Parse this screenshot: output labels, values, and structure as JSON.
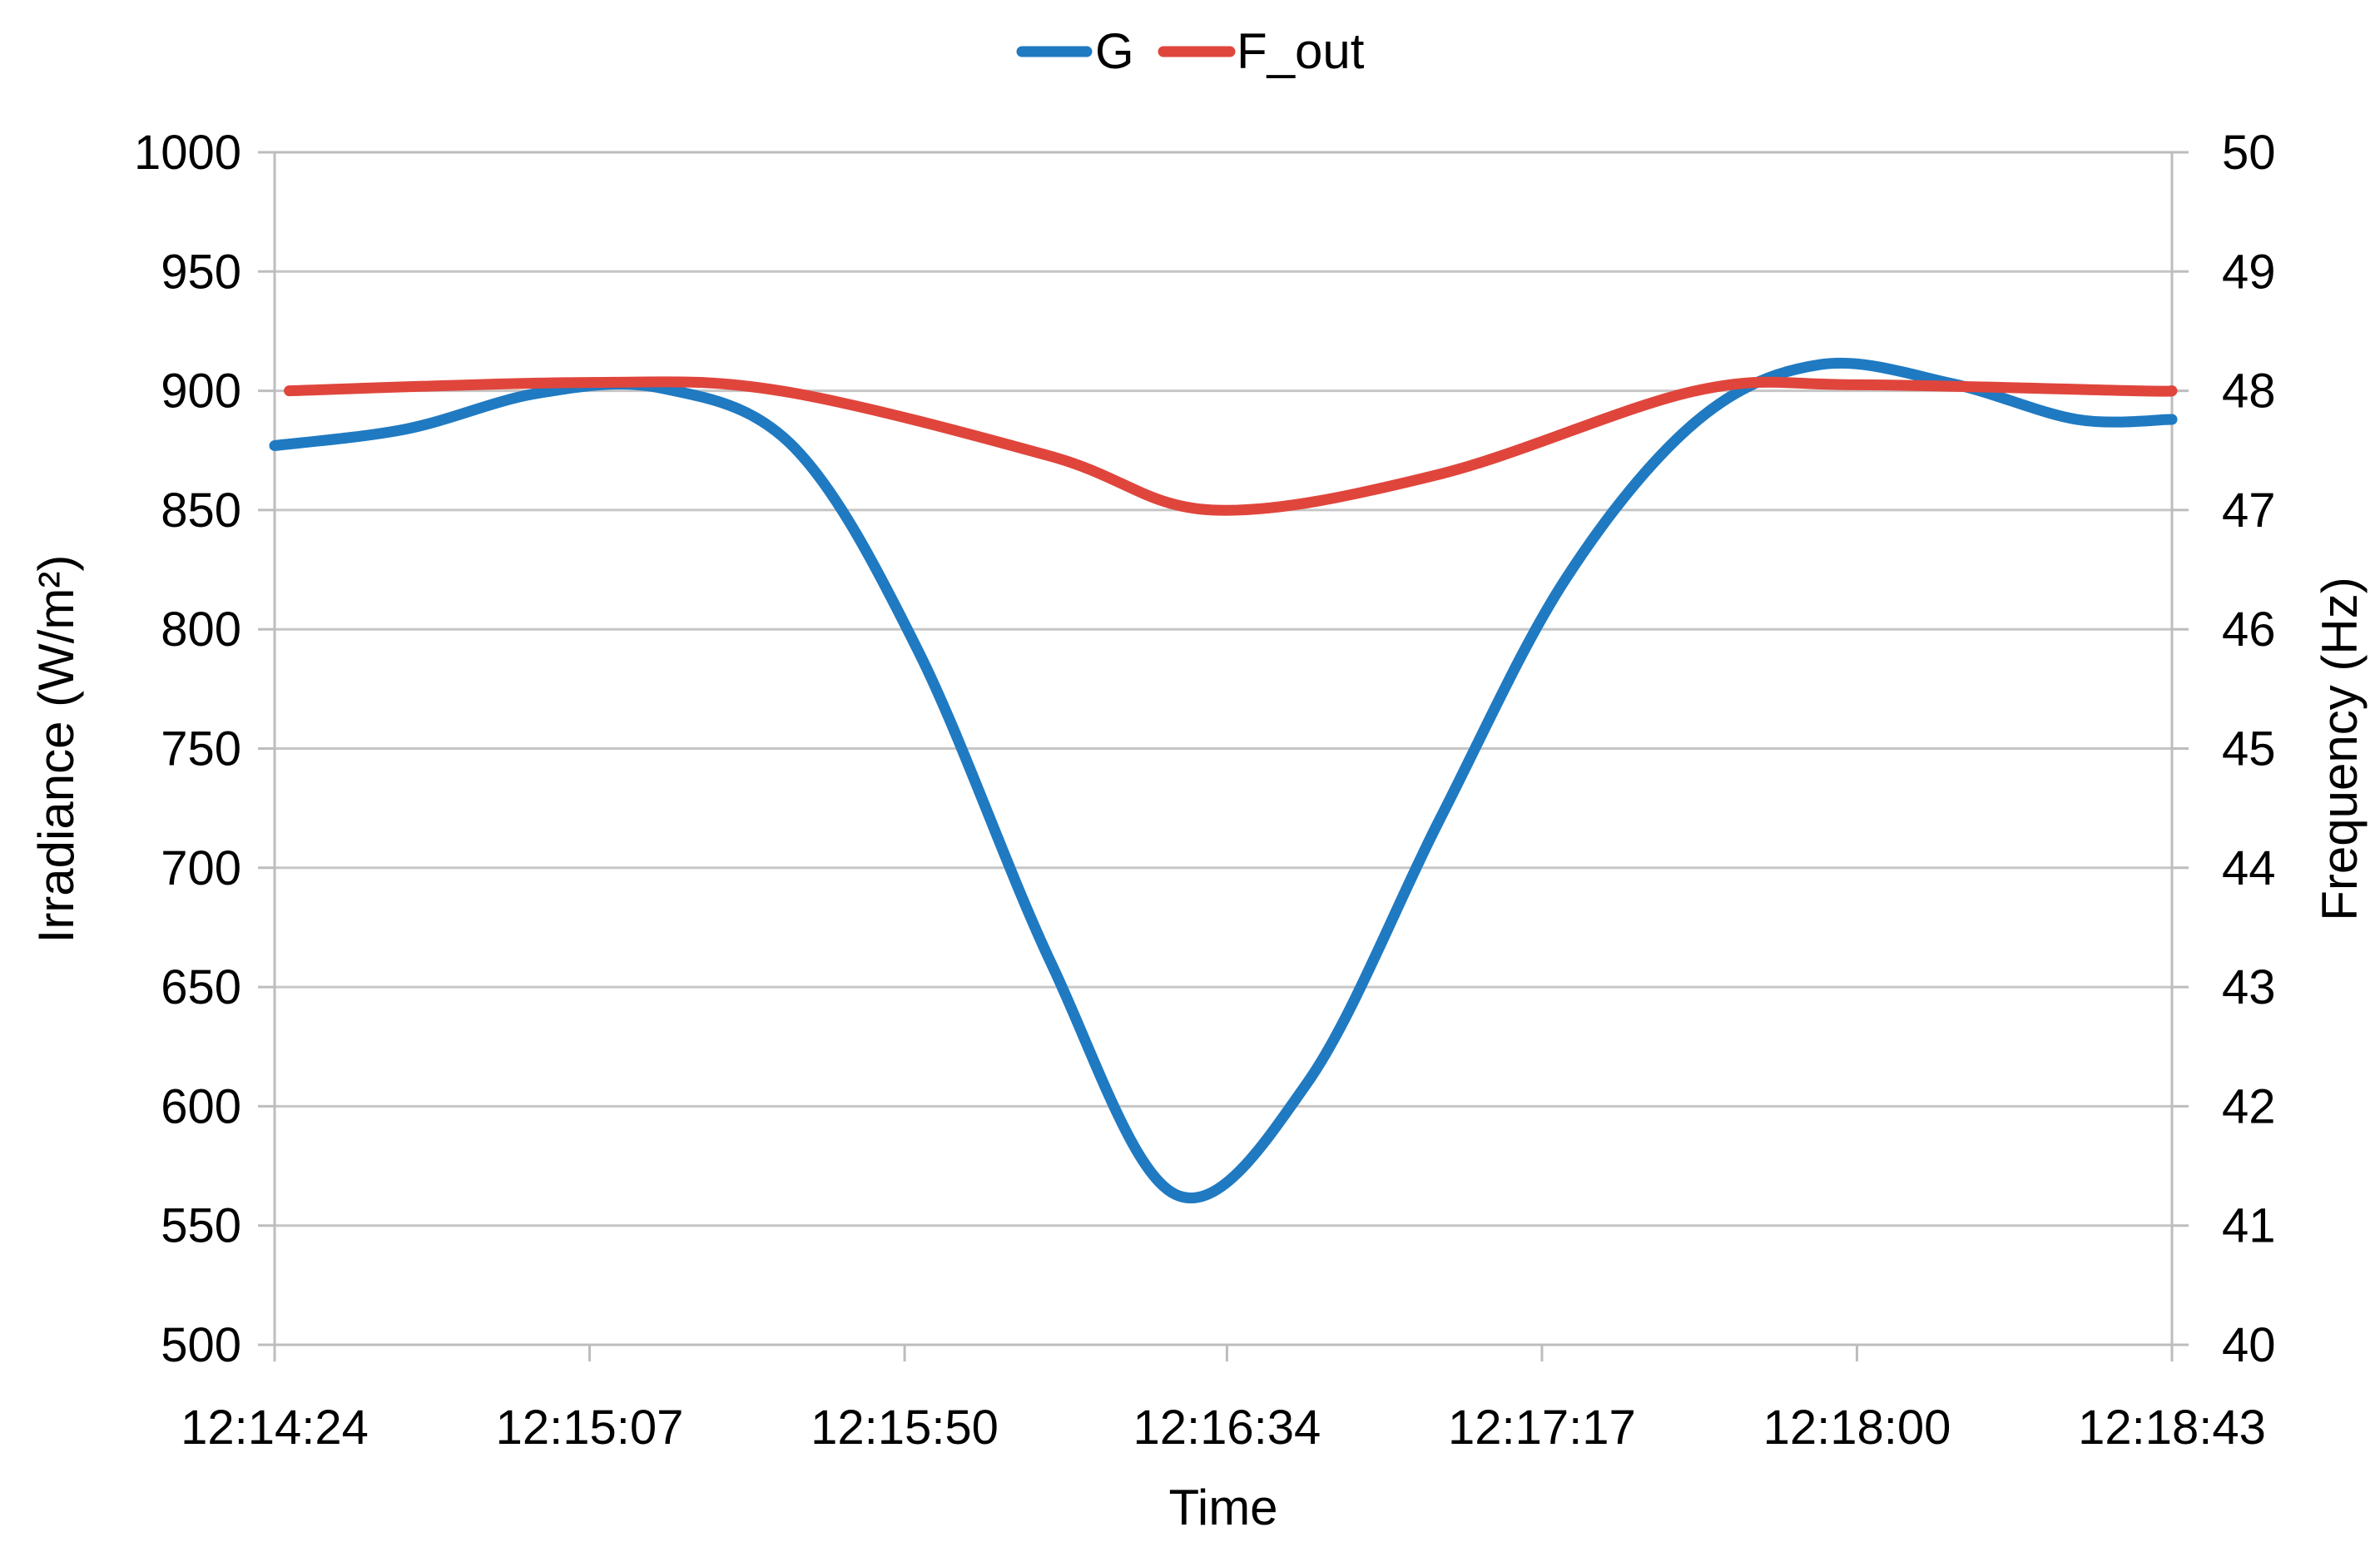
{
  "chart_data": {
    "type": "line",
    "title": "",
    "xlabel": "Time",
    "ylabel": "Irradiance (W/m²)",
    "ylabel_right": "Frequency (Hz)",
    "x_tick_labels": [
      "12:14:24",
      "12:15:07",
      "12:15:50",
      "12:16:34",
      "12:17:17",
      "12:18:00",
      "12:18:43"
    ],
    "x_range": [
      "12:14:24",
      "12:18:43"
    ],
    "ylim": [
      500,
      1000
    ],
    "y_ticks": [
      500,
      550,
      600,
      650,
      700,
      750,
      800,
      850,
      900,
      950,
      1000
    ],
    "ylim_right": [
      40,
      50
    ],
    "y_ticks_right": [
      40,
      41,
      42,
      43,
      44,
      45,
      46,
      47,
      48,
      49,
      50
    ],
    "grid": true,
    "legend_position": "top-center",
    "series": [
      {
        "name": "G",
        "axis": "left",
        "color": "#1f7ac2",
        "x": [
          "12:14:24",
          "12:14:42",
          "12:15:00",
          "12:15:17",
          "12:15:35",
          "12:15:52",
          "12:16:10",
          "12:16:27",
          "12:16:45",
          "12:17:03",
          "12:17:20",
          "12:17:38",
          "12:17:55",
          "12:18:13",
          "12:18:30",
          "12:18:43"
        ],
        "y": [
          877,
          884,
          899,
          901,
          876,
          790,
          660,
          563,
          610,
          720,
          820,
          887,
          911,
          903,
          888,
          888
        ]
      },
      {
        "name": "F_out",
        "axis": "right",
        "color": "#e0453c",
        "x": [
          "12:14:26",
          "12:15:07",
          "12:15:33",
          "12:16:10",
          "12:16:32",
          "12:17:03",
          "12:17:38",
          "12:18:00",
          "12:18:38",
          "12:18:43"
        ],
        "y": [
          48.0,
          48.07,
          48.0,
          47.45,
          47.0,
          47.3,
          48.0,
          48.05,
          48.0,
          48.0
        ]
      }
    ]
  }
}
